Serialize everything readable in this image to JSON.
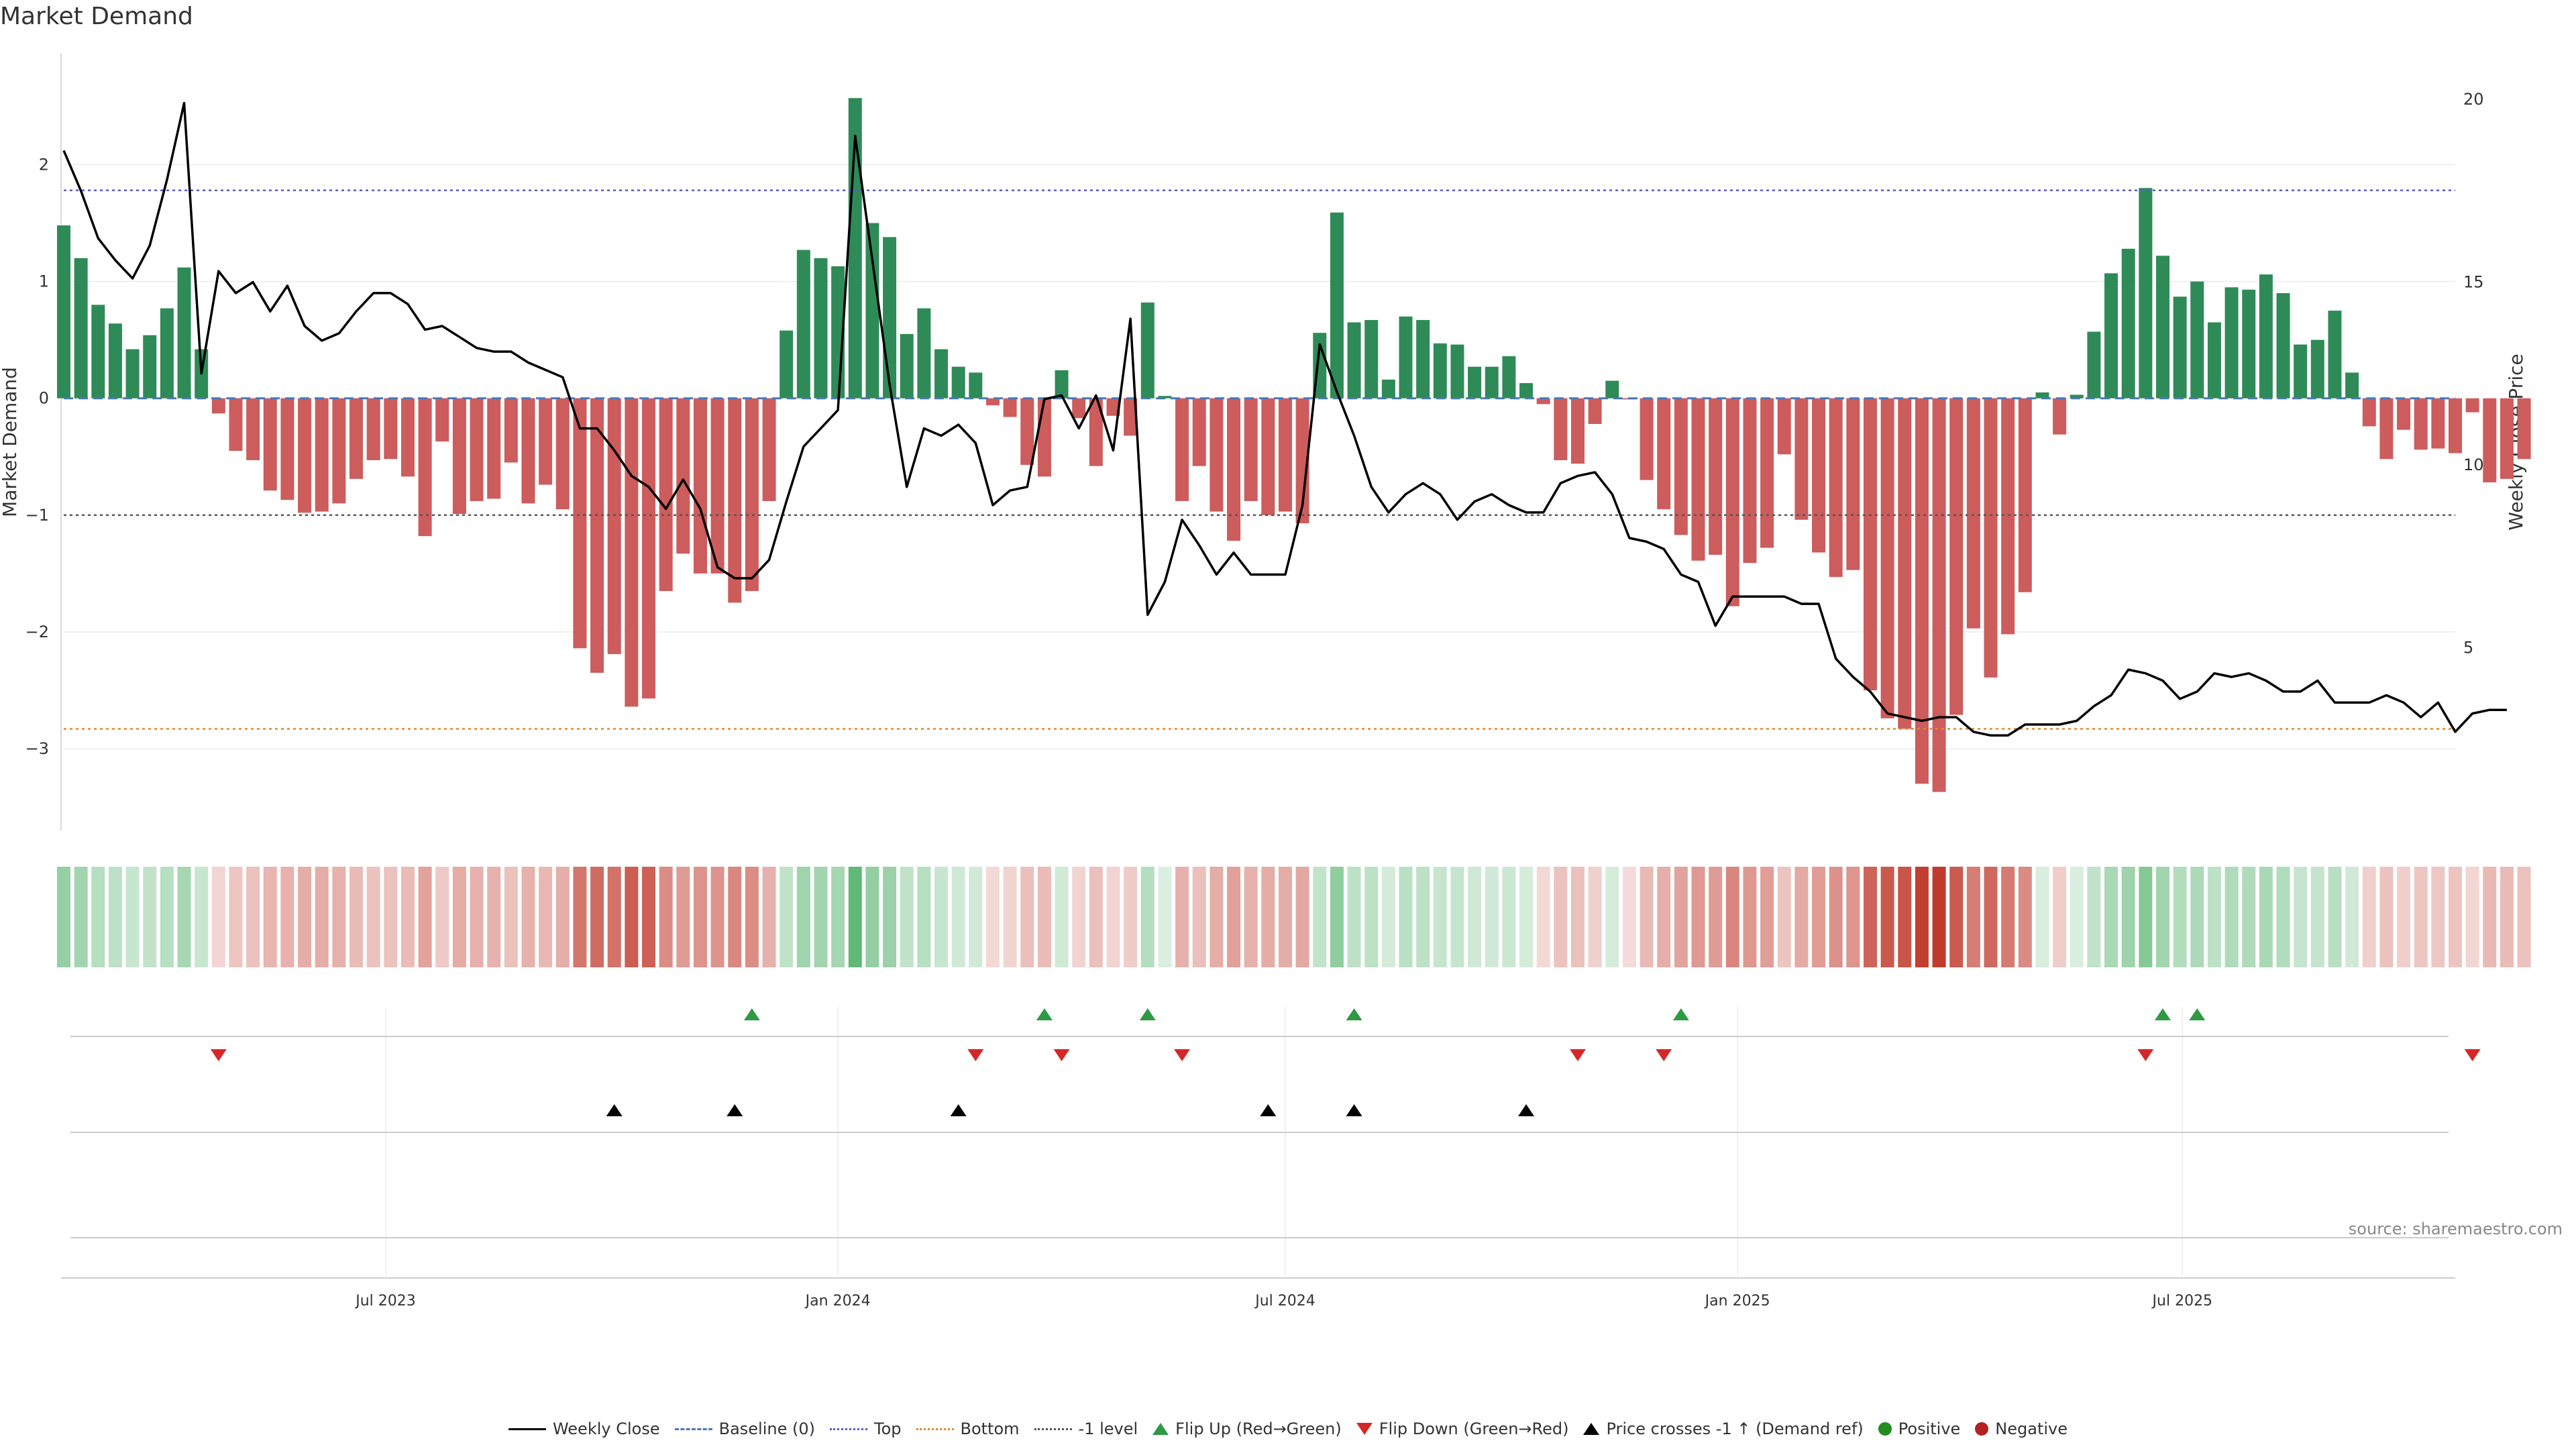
{
  "title": "Market Demand",
  "source": "source: sharemaestro.com",
  "colors": {
    "positive_bar": "#2e8b57",
    "negative_bar": "#cd5c5c",
    "price_line": "#000000",
    "top_line": "#5a5ad0",
    "bottom_line": "#e08a2b",
    "minus_one_line": "#555555",
    "baseline": "#4a78b8",
    "flip_up": "#2e9a44",
    "flip_down": "#d62728",
    "price_cross": "#000000"
  },
  "chart_data": {
    "type": "bar",
    "title": "Market Demand",
    "ylabel": "Market Demand",
    "y2label": "Weekly Close Price",
    "ylim": [
      -3.7,
      2.95
    ],
    "y2lim": [
      0,
      21.25
    ],
    "yticks": [
      {
        "value": 2,
        "label": "2"
      },
      {
        "value": 1,
        "label": "1"
      },
      {
        "value": 0,
        "label": "0"
      },
      {
        "value": -1,
        "label": "−1"
      },
      {
        "value": -2,
        "label": "−2"
      },
      {
        "value": -3,
        "label": "−3"
      }
    ],
    "y2ticks": [
      {
        "value": 20,
        "label": "20"
      },
      {
        "value": 15,
        "label": "15"
      },
      {
        "value": 10,
        "label": "10"
      },
      {
        "value": 5,
        "label": "5"
      }
    ],
    "date_range": [
      "2023-02-20",
      "2025-10-20"
    ],
    "xticks": [
      {
        "date": "2023-07-01",
        "label": "Jul 2023"
      },
      {
        "date": "2024-01-01",
        "label": "Jan 2024"
      },
      {
        "date": "2024-07-01",
        "label": "Jul 2024"
      },
      {
        "date": "2025-01-01",
        "label": "Jan 2025"
      },
      {
        "date": "2025-07-01",
        "label": "Jul 2025"
      }
    ],
    "reference_levels": {
      "top": 1.78,
      "bottom": -2.83,
      "minus_one": -1,
      "baseline": 0
    },
    "series": [
      {
        "name": "Market Demand",
        "start_date": "2023-02-20",
        "interval_days": 7,
        "values": [
          1.48,
          1.2,
          0.8,
          0.64,
          0.42,
          0.54,
          0.77,
          1.12,
          0.42,
          -0.13,
          -0.45,
          -0.53,
          -0.79,
          -0.87,
          -0.98,
          -0.97,
          -0.9,
          -0.69,
          -0.53,
          -0.52,
          -0.67,
          -1.18,
          -0.37,
          -0.99,
          -0.88,
          -0.86,
          -0.55,
          -0.9,
          -0.74,
          -0.95,
          -2.14,
          -2.35,
          -2.19,
          -2.64,
          -2.57,
          -1.65,
          -1.33,
          -1.5,
          -1.5,
          -1.75,
          -1.65,
          -0.88,
          0.58,
          1.27,
          1.2,
          1.13,
          2.57,
          1.5,
          1.38,
          0.55,
          0.77,
          0.42,
          0.27,
          0.22,
          -0.06,
          -0.16,
          -0.57,
          -0.67,
          0.24,
          -0.17,
          -0.58,
          -0.15,
          -0.32,
          0.82,
          0.02,
          -0.88,
          -0.58,
          -0.97,
          -1.22,
          -0.88,
          -1.0,
          -0.97,
          -1.07,
          0.56,
          1.59,
          0.65,
          0.67,
          0.16,
          0.7,
          0.67,
          0.47,
          0.46,
          0.27,
          0.27,
          0.36,
          0.13,
          -0.05,
          -0.53,
          -0.56,
          -0.22,
          0.15,
          -0.01,
          -0.7,
          -0.95,
          -1.17,
          -1.39,
          -1.34,
          -1.78,
          -1.41,
          -1.28,
          -0.48,
          -1.04,
          -1.32,
          -1.53,
          -1.47,
          -2.5,
          -2.74,
          -2.83,
          -3.3,
          -3.37,
          -2.71,
          -1.97,
          -2.39,
          -2.02,
          -1.66,
          0.05,
          -0.31,
          0.03,
          0.57,
          1.07,
          1.28,
          1.8,
          1.22,
          0.87,
          1.0,
          0.65,
          0.95,
          0.93,
          1.06,
          0.9,
          0.46,
          0.5,
          0.75,
          0.22,
          -0.24,
          -0.52,
          -0.27,
          -0.44,
          -0.43,
          -0.47,
          -0.12,
          -0.72,
          -0.69,
          -0.52
        ]
      },
      {
        "name": "Weekly Close",
        "start_date": "2023-02-20",
        "interval_days": 7,
        "values": [
          18.6,
          17.5,
          16.2,
          15.6,
          15.1,
          16.0,
          17.8,
          19.9,
          12.5,
          15.3,
          14.7,
          15.0,
          14.2,
          14.9,
          13.8,
          13.4,
          13.6,
          14.2,
          14.7,
          14.7,
          14.4,
          13.7,
          13.8,
          13.5,
          13.2,
          13.1,
          13.1,
          12.8,
          12.6,
          12.4,
          11.0,
          11.0,
          10.4,
          9.7,
          9.4,
          8.8,
          9.6,
          8.8,
          7.2,
          6.9,
          6.9,
          7.4,
          9.0,
          10.5,
          11.0,
          11.5,
          19.0,
          15.6,
          12.2,
          9.4,
          11.0,
          10.8,
          11.1,
          10.6,
          8.9,
          9.3,
          9.4,
          11.8,
          11.9,
          11.0,
          11.9,
          10.4,
          14.0,
          5.9,
          6.8,
          8.5,
          7.8,
          7.0,
          7.6,
          7.0,
          7.0,
          7.0,
          8.9,
          13.3,
          12.0,
          10.8,
          9.4,
          8.7,
          9.2,
          9.5,
          9.2,
          8.5,
          9.0,
          9.2,
          8.9,
          8.7,
          8.7,
          9.5,
          9.7,
          9.8,
          9.2,
          8.0,
          7.9,
          7.7,
          7.0,
          6.8,
          5.6,
          6.4,
          6.4,
          6.4,
          6.4,
          6.2,
          6.2,
          4.7,
          4.2,
          3.8,
          3.2,
          3.1,
          3.0,
          3.1,
          3.1,
          2.7,
          2.6,
          2.6,
          2.9,
          2.9,
          2.9,
          3.0,
          3.4,
          3.7,
          4.4,
          4.3,
          4.1,
          3.6,
          3.8,
          4.3,
          4.2,
          4.3,
          4.1,
          3.8,
          3.8,
          4.1,
          3.5,
          3.5,
          3.5,
          3.7,
          3.5,
          3.1,
          3.5,
          2.7,
          3.2,
          3.3,
          3.3
        ]
      }
    ],
    "flip_up_dates": [
      "2023-11-27",
      "2024-03-25",
      "2024-05-06",
      "2024-07-29",
      "2024-12-09",
      "2025-06-23",
      "2025-07-07"
    ],
    "flip_down_dates": [
      "2023-04-24",
      "2024-02-26",
      "2024-04-01",
      "2024-05-20",
      "2024-10-28",
      "2024-12-02",
      "2025-06-16",
      "2025-10-27"
    ],
    "price_cross_dates": [
      "2023-10-02",
      "2023-11-20",
      "2024-02-19",
      "2024-06-24",
      "2024-07-29",
      "2024-10-07"
    ],
    "legend": [
      "Weekly Close",
      "Baseline (0)",
      "Top",
      "Bottom",
      "-1 level",
      "Flip Up (Red→Green)",
      "Flip Down (Green→Red)",
      "Price crosses -1 ↑ (Demand ref)",
      "Positive",
      "Negative"
    ]
  }
}
